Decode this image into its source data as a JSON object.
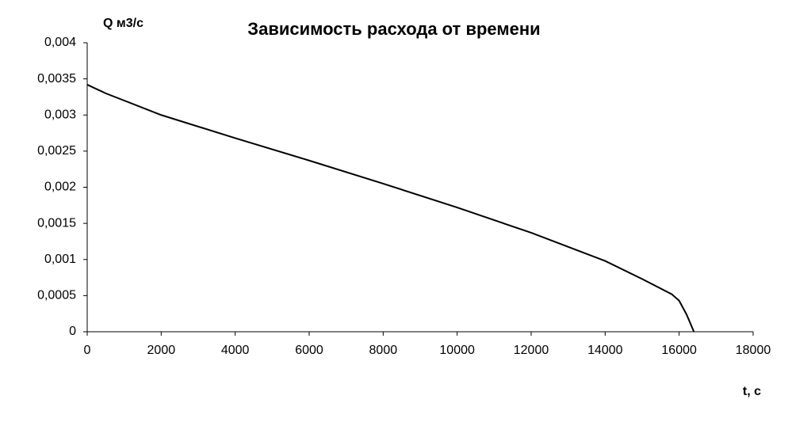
{
  "chart_data": {
    "type": "line",
    "title": "Зависимость расхода от времени",
    "y_label": "Q м3/с",
    "x_label": "t, с",
    "x": [
      0,
      500,
      1000,
      2000,
      4000,
      6000,
      8000,
      10000,
      12000,
      14000,
      15000,
      15800,
      16000,
      16200,
      16400
    ],
    "series": [
      {
        "name": "Q",
        "color": "#000000",
        "values": [
          0.00342,
          0.0033,
          0.0032,
          0.003,
          0.00268,
          0.00237,
          0.00205,
          0.00172,
          0.00137,
          0.00098,
          0.00073,
          0.00052,
          0.00043,
          0.00024,
          0
        ]
      }
    ],
    "xlim": [
      0,
      18000
    ],
    "xticks": [
      0,
      2000,
      4000,
      6000,
      8000,
      10000,
      12000,
      14000,
      16000,
      18000
    ],
    "ylim": [
      0,
      0.004
    ],
    "yticks": [
      0,
      {
        "value": 0.0005,
        "label": "0,0005"
      },
      {
        "value": 0.001,
        "label": "0,001"
      },
      {
        "value": 0.0015,
        "label": "0,0015"
      },
      {
        "value": 0.002,
        "label": "0,002"
      },
      {
        "value": 0.0025,
        "label": "0,0025"
      },
      {
        "value": 0.003,
        "label": "0,003"
      },
      {
        "value": 0.0035,
        "label": "0,0035"
      },
      {
        "value": 0.004,
        "label": "0,004"
      }
    ],
    "grid": false
  }
}
